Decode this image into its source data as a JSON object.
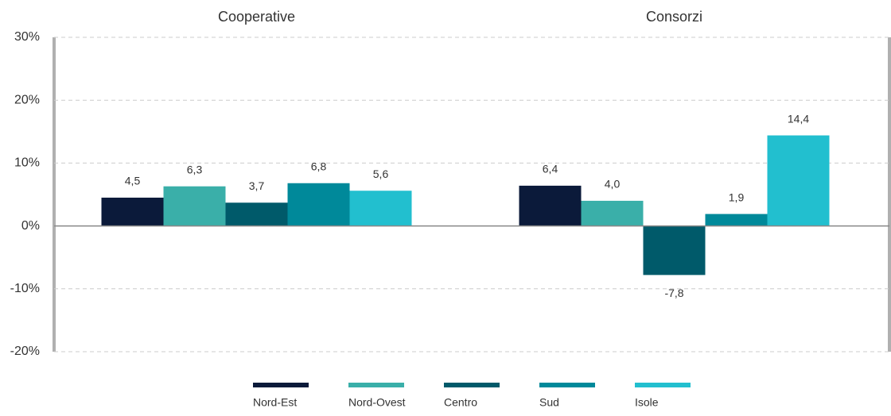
{
  "chart_data": {
    "type": "bar",
    "categories": [
      "Cooperative",
      "Consorzi"
    ],
    "series": [
      {
        "name": "Nord-Est",
        "color": "#0b1a3a",
        "values": [
          4.5,
          6.4
        ],
        "value_labels": [
          "4,5",
          "6,4"
        ]
      },
      {
        "name": "Nord-Ovest",
        "color": "#3aafa9",
        "values": [
          6.3,
          4.0
        ],
        "value_labels": [
          "6,3",
          "4,0"
        ]
      },
      {
        "name": "Centro",
        "color": "#005a6a",
        "values": [
          3.7,
          -7.8
        ],
        "value_labels": [
          "3,7",
          "-7,8"
        ]
      },
      {
        "name": "Sud",
        "color": "#00899a",
        "values": [
          6.8,
          1.9
        ],
        "value_labels": [
          "6,8",
          "1,9"
        ]
      },
      {
        "name": "Isole",
        "color": "#22bfcf",
        "values": [
          5.6,
          14.4
        ],
        "value_labels": [
          "5,6",
          "14,4"
        ]
      }
    ],
    "ylim": [
      -20,
      30
    ],
    "yticks": [
      {
        "value": -20,
        "label": "-20%"
      },
      {
        "value": -10,
        "label": "-10%"
      },
      {
        "value": 0,
        "label": "0%"
      },
      {
        "value": 10,
        "label": "10%"
      },
      {
        "value": 20,
        "label": "20%"
      },
      {
        "value": 30,
        "label": "30%"
      }
    ],
    "grid": true,
    "legend": "bottom"
  }
}
